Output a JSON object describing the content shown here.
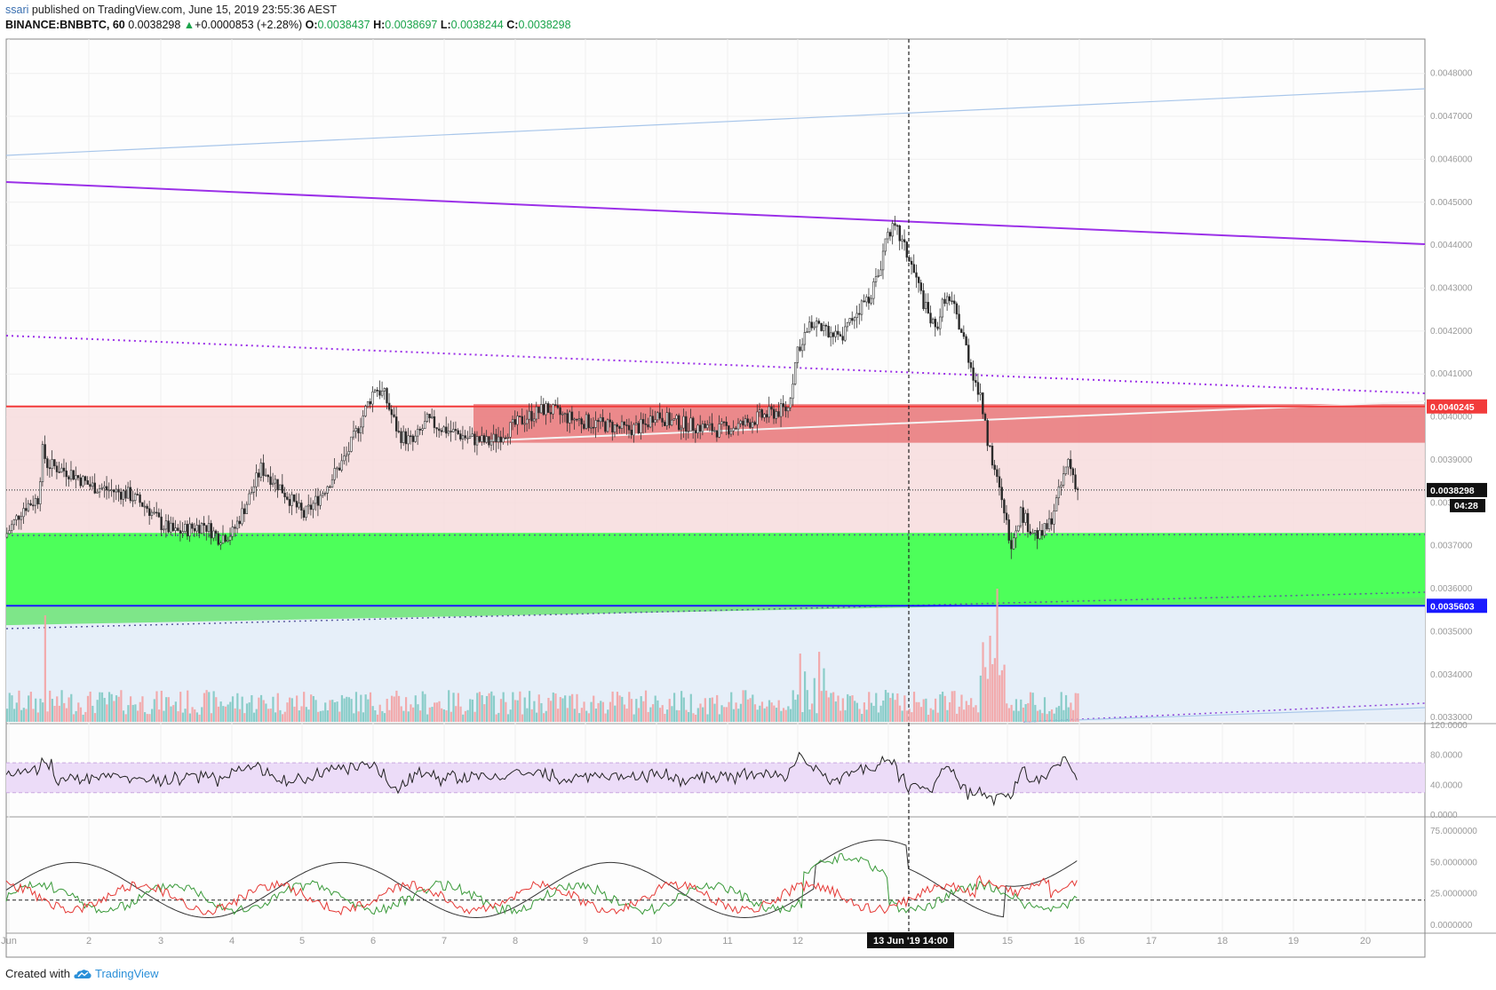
{
  "header": {
    "author": "ssari",
    "published_text": "published on TradingView.com, June 15, 2019 23:55:36 AEST",
    "symbol": "BINANCE:BNBBTC, 60",
    "last": "0.0038298",
    "change_symbol": "▲",
    "change": "+0.0000853 (+2.28%)",
    "o_label": "O:",
    "o_value": "0.0038437",
    "h_label": "H:",
    "h_value": "0.0038697",
    "l_label": "L:",
    "l_value": "0.0038244",
    "c_label": "C:",
    "c_value": "0.0038298"
  },
  "footer": {
    "created_with": "Created with",
    "brand": "TradingView"
  },
  "colors": {
    "up": "#26a69a",
    "down": "#ef5350",
    "resistance_zone": "#e9797b",
    "support_zone": "#4dff5a",
    "trend_purple": "#9b30e8",
    "blue_line": "#1a1aff",
    "red_line": "#f23b3b",
    "rsi_band": "#ecdcf8"
  },
  "chart_data": [
    {
      "type": "candlestick",
      "title": "BINANCE:BNBBTC, 60",
      "x_ticks": [
        "Jun",
        "2",
        "3",
        "4",
        "5",
        "6",
        "7",
        "8",
        "9",
        "10",
        "11",
        "12",
        "13 Jun '19  14:00",
        "15",
        "16",
        "17",
        "18",
        "19",
        "20"
      ],
      "y_ticks": [
        "0.0048000",
        "0.0047000",
        "0.0046000",
        "0.0045000",
        "0.0044000",
        "0.0043000",
        "0.0042000",
        "0.0041000",
        "0.0040000",
        "0.0039000",
        "0.0038000",
        "0.0037000",
        "0.0036000",
        "0.0035000",
        "0.0034000",
        "0.0033000"
      ],
      "ylim": [
        0.00329,
        0.00488
      ],
      "price_labels": [
        {
          "value": "0.0040245",
          "style": "red"
        },
        {
          "value": "0.0038298",
          "style": "black"
        },
        {
          "value": "04:28",
          "style": "black"
        },
        {
          "value": "0.0035603",
          "style": "blue"
        }
      ],
      "levels": {
        "resistance": 0.0040245,
        "last": 0.0038298,
        "support": 0.0035603
      },
      "zones": {
        "resistance_zone": [
          0.00394,
          0.00403
        ],
        "support_zone": [
          0.00356,
          0.00373
        ]
      },
      "path_points": [
        [
          0,
          0.00372
        ],
        [
          8,
          0.00379
        ],
        [
          14,
          0.00381
        ],
        [
          16,
          0.00392
        ],
        [
          18,
          0.00389
        ],
        [
          28,
          0.00387
        ],
        [
          36,
          0.00384
        ],
        [
          44,
          0.00383
        ],
        [
          52,
          0.00382
        ],
        [
          60,
          0.00379
        ],
        [
          66,
          0.00375
        ],
        [
          72,
          0.00373
        ],
        [
          78,
          0.00374
        ],
        [
          84,
          0.00375
        ],
        [
          90,
          0.00372
        ],
        [
          96,
          0.00373
        ],
        [
          102,
          0.0038
        ],
        [
          108,
          0.00388
        ],
        [
          114,
          0.00385
        ],
        [
          120,
          0.00381
        ],
        [
          126,
          0.00377
        ],
        [
          132,
          0.00381
        ],
        [
          138,
          0.00386
        ],
        [
          144,
          0.00391
        ],
        [
          150,
          0.00399
        ],
        [
          156,
          0.00407
        ],
        [
          160,
          0.00405
        ],
        [
          166,
          0.00396
        ],
        [
          172,
          0.00394
        ],
        [
          178,
          0.00399
        ],
        [
          186,
          0.00397
        ],
        [
          196,
          0.00395
        ],
        [
          204,
          0.00394
        ],
        [
          212,
          0.00397
        ],
        [
          220,
          0.004
        ],
        [
          228,
          0.00402
        ],
        [
          236,
          0.004
        ],
        [
          244,
          0.00399
        ],
        [
          254,
          0.00398
        ],
        [
          262,
          0.00397
        ],
        [
          270,
          0.00398
        ],
        [
          274,
          0.00401
        ],
        [
          280,
          0.00399
        ],
        [
          290,
          0.00398
        ],
        [
          300,
          0.00397
        ],
        [
          310,
          0.00398
        ],
        [
          318,
          0.004
        ],
        [
          324,
          0.00401
        ],
        [
          330,
          0.00402
        ],
        [
          334,
          0.00416
        ],
        [
          340,
          0.00422
        ],
        [
          346,
          0.0042
        ],
        [
          352,
          0.00418
        ],
        [
          358,
          0.00424
        ],
        [
          364,
          0.00428
        ],
        [
          368,
          0.00433
        ],
        [
          372,
          0.00444
        ],
        [
          376,
          0.00443
        ],
        [
          380,
          0.00438
        ],
        [
          384,
          0.00432
        ],
        [
          388,
          0.00425
        ],
        [
          392,
          0.0042
        ],
        [
          396,
          0.00428
        ],
        [
          400,
          0.00425
        ],
        [
          404,
          0.00418
        ],
        [
          408,
          0.0041
        ],
        [
          412,
          0.00402
        ],
        [
          414,
          0.00395
        ],
        [
          418,
          0.00385
        ],
        [
          422,
          0.00375
        ],
        [
          424,
          0.00371
        ],
        [
          428,
          0.00378
        ],
        [
          432,
          0.00374
        ],
        [
          436,
          0.00372
        ],
        [
          440,
          0.00375
        ],
        [
          444,
          0.00382
        ],
        [
          448,
          0.0039
        ],
        [
          452,
          0.00383
        ]
      ],
      "volume_panel": {
        "type": "bar",
        "range": "hourly volume, up/down colored"
      },
      "rsi": {
        "type": "line",
        "y_ticks": [
          "120.0000",
          "80.0000",
          "40.0000",
          "0.0000"
        ],
        "band": [
          30,
          70
        ],
        "ylim": [
          0,
          120
        ]
      },
      "dmi": {
        "type": "line",
        "y_ticks": [
          "75.0000000",
          "50.0000000",
          "25.0000000",
          "0.0000000"
        ],
        "reference": 20,
        "ylim": [
          -5,
          85
        ]
      }
    }
  ]
}
